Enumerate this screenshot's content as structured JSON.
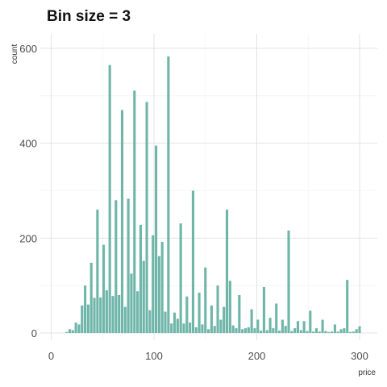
{
  "chart_data": {
    "type": "bar",
    "title": "Bin size = 3",
    "xlabel": "price",
    "ylabel": "count",
    "xlim": [
      0,
      310
    ],
    "ylim": [
      0,
      620
    ],
    "x_ticks": [
      0,
      100,
      200,
      300
    ],
    "y_ticks": [
      0,
      200,
      400,
      600
    ],
    "bin_width": 3,
    "grid": true,
    "bar_color": "#6fb6a9",
    "bins": [
      {
        "x": 15,
        "y": 2
      },
      {
        "x": 18,
        "y": 8
      },
      {
        "x": 21,
        "y": 6
      },
      {
        "x": 24,
        "y": 22
      },
      {
        "x": 27,
        "y": 18
      },
      {
        "x": 30,
        "y": 58
      },
      {
        "x": 33,
        "y": 100
      },
      {
        "x": 36,
        "y": 60
      },
      {
        "x": 39,
        "y": 148
      },
      {
        "x": 42,
        "y": 74
      },
      {
        "x": 45,
        "y": 260
      },
      {
        "x": 48,
        "y": 75
      },
      {
        "x": 51,
        "y": 186
      },
      {
        "x": 54,
        "y": 90
      },
      {
        "x": 57,
        "y": 565
      },
      {
        "x": 60,
        "y": 78
      },
      {
        "x": 63,
        "y": 280
      },
      {
        "x": 66,
        "y": 80
      },
      {
        "x": 69,
        "y": 470
      },
      {
        "x": 72,
        "y": 55
      },
      {
        "x": 75,
        "y": 283
      },
      {
        "x": 78,
        "y": 125
      },
      {
        "x": 81,
        "y": 511
      },
      {
        "x": 84,
        "y": 88
      },
      {
        "x": 87,
        "y": 228
      },
      {
        "x": 90,
        "y": 152
      },
      {
        "x": 93,
        "y": 487
      },
      {
        "x": 96,
        "y": 48
      },
      {
        "x": 99,
        "y": 206
      },
      {
        "x": 102,
        "y": 395
      },
      {
        "x": 105,
        "y": 162
      },
      {
        "x": 108,
        "y": 192
      },
      {
        "x": 111,
        "y": 45
      },
      {
        "x": 114,
        "y": 583
      },
      {
        "x": 117,
        "y": 20
      },
      {
        "x": 120,
        "y": 43
      },
      {
        "x": 123,
        "y": 30
      },
      {
        "x": 126,
        "y": 231
      },
      {
        "x": 129,
        "y": 20
      },
      {
        "x": 132,
        "y": 77
      },
      {
        "x": 135,
        "y": 22
      },
      {
        "x": 138,
        "y": 300
      },
      {
        "x": 141,
        "y": 12
      },
      {
        "x": 144,
        "y": 85
      },
      {
        "x": 147,
        "y": 18
      },
      {
        "x": 150,
        "y": 138
      },
      {
        "x": 153,
        "y": 8
      },
      {
        "x": 156,
        "y": 58
      },
      {
        "x": 159,
        "y": 15
      },
      {
        "x": 162,
        "y": 100
      },
      {
        "x": 165,
        "y": 28
      },
      {
        "x": 168,
        "y": 55
      },
      {
        "x": 171,
        "y": 260
      },
      {
        "x": 174,
        "y": 110
      },
      {
        "x": 177,
        "y": 16
      },
      {
        "x": 180,
        "y": 10
      },
      {
        "x": 183,
        "y": 80
      },
      {
        "x": 186,
        "y": 8
      },
      {
        "x": 189,
        "y": 10
      },
      {
        "x": 192,
        "y": 12
      },
      {
        "x": 195,
        "y": 50
      },
      {
        "x": 198,
        "y": 10
      },
      {
        "x": 201,
        "y": 28
      },
      {
        "x": 204,
        "y": 5
      },
      {
        "x": 207,
        "y": 97
      },
      {
        "x": 210,
        "y": 6
      },
      {
        "x": 213,
        "y": 32
      },
      {
        "x": 216,
        "y": 10
      },
      {
        "x": 219,
        "y": 62
      },
      {
        "x": 222,
        "y": 5
      },
      {
        "x": 225,
        "y": 28
      },
      {
        "x": 228,
        "y": 15
      },
      {
        "x": 231,
        "y": 216
      },
      {
        "x": 234,
        "y": 4
      },
      {
        "x": 237,
        "y": 10
      },
      {
        "x": 240,
        "y": 25
      },
      {
        "x": 243,
        "y": 6
      },
      {
        "x": 246,
        "y": 25
      },
      {
        "x": 249,
        "y": 4
      },
      {
        "x": 252,
        "y": 47
      },
      {
        "x": 255,
        "y": 3
      },
      {
        "x": 258,
        "y": 10
      },
      {
        "x": 261,
        "y": 3
      },
      {
        "x": 264,
        "y": 28
      },
      {
        "x": 267,
        "y": 4
      },
      {
        "x": 270,
        "y": 2
      },
      {
        "x": 273,
        "y": 3
      },
      {
        "x": 276,
        "y": 18
      },
      {
        "x": 279,
        "y": 3
      },
      {
        "x": 282,
        "y": 8
      },
      {
        "x": 285,
        "y": 10
      },
      {
        "x": 288,
        "y": 112
      },
      {
        "x": 291,
        "y": 2
      },
      {
        "x": 294,
        "y": 3
      },
      {
        "x": 297,
        "y": 8
      },
      {
        "x": 300,
        "y": 14
      }
    ]
  }
}
